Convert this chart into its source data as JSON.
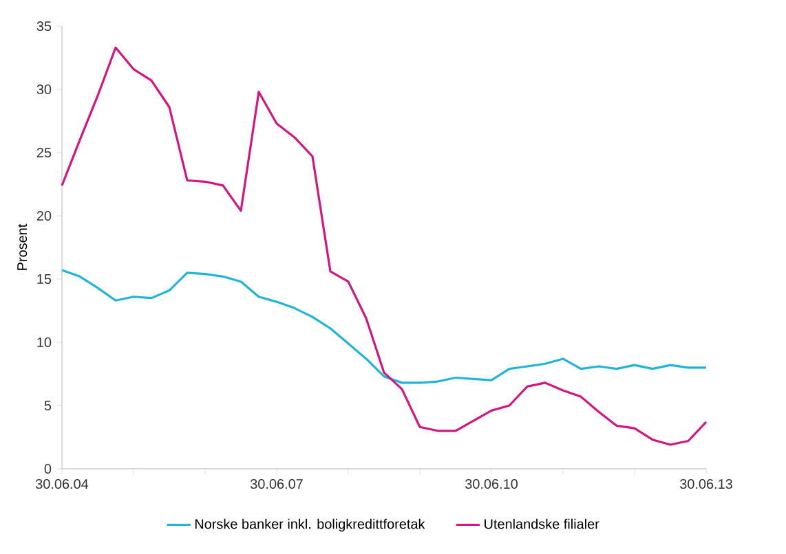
{
  "chart_data": {
    "type": "line",
    "ylabel": "Prosent",
    "categories": [
      "30.06.04",
      null,
      null,
      null,
      null,
      null,
      null,
      null,
      null,
      null,
      null,
      null,
      "30.06.07",
      null,
      null,
      null,
      null,
      null,
      null,
      null,
      null,
      null,
      null,
      null,
      "30.06.10",
      null,
      null,
      null,
      null,
      null,
      null,
      null,
      null,
      null,
      null,
      null,
      "30.06.13"
    ],
    "series": [
      {
        "name": "Norske banker inkl. boligkredittforetak",
        "color": "#1fb5d8",
        "values": [
          15.7,
          15.2,
          14.3,
          13.3,
          13.6,
          13.5,
          14.1,
          15.5,
          15.4,
          15.2,
          14.8,
          13.6,
          13.2,
          12.7,
          12.0,
          11.1,
          9.9,
          8.7,
          7.3,
          6.8,
          6.8,
          6.9,
          7.2,
          7.1,
          7.0,
          7.9,
          8.1,
          8.3,
          8.7,
          7.9,
          8.1,
          7.9,
          8.2,
          7.9,
          8.2,
          8.0,
          8.0
        ]
      },
      {
        "name": "Utenlandske filialer",
        "color": "#d4157f",
        "values": [
          22.4,
          26.0,
          29.5,
          33.3,
          31.6,
          30.7,
          28.6,
          22.8,
          22.7,
          22.4,
          20.4,
          29.8,
          27.3,
          26.2,
          24.7,
          15.6,
          14.8,
          11.9,
          7.6,
          6.3,
          3.3,
          3.0,
          3.0,
          3.8,
          4.6,
          5.0,
          6.5,
          6.8,
          6.2,
          5.7,
          4.5,
          3.4,
          3.2,
          2.3,
          1.9,
          2.2,
          3.7
        ]
      }
    ],
    "ylim": [
      0,
      35
    ],
    "yticks": [
      0,
      5,
      10,
      15,
      20,
      25,
      30,
      35
    ],
    "grid": false,
    "legend": "bottom",
    "marker": "none",
    "line_style": "solid"
  }
}
